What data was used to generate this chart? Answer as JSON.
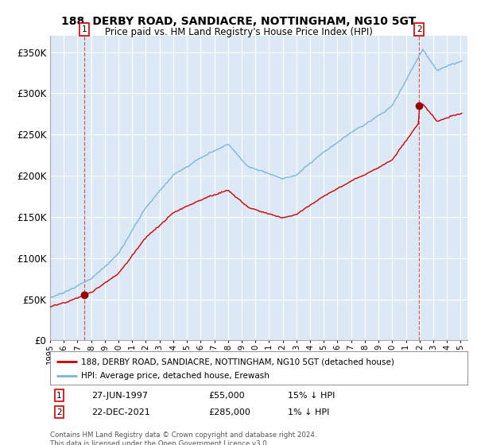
{
  "title_line1": "188, DERBY ROAD, SANDIACRE, NOTTINGHAM, NG10 5GT",
  "title_line2": "Price paid vs. HM Land Registry's House Price Index (HPI)",
  "ylabel_ticks": [
    "£0",
    "£50K",
    "£100K",
    "£150K",
    "£200K",
    "£250K",
    "£300K",
    "£350K"
  ],
  "ytick_values": [
    0,
    50000,
    100000,
    150000,
    200000,
    250000,
    300000,
    350000
  ],
  "ylim": [
    0,
    370000
  ],
  "sale1_price": 55000,
  "sale1_year": 1997.49,
  "sale2_price": 285000,
  "sale2_year": 2021.97,
  "legend_line1": "188, DERBY ROAD, SANDIACRE, NOTTINGHAM, NG10 5GT (detached house)",
  "legend_line2": "HPI: Average price, detached house, Erewash",
  "footer": "Contains HM Land Registry data © Crown copyright and database right 2024.\nThis data is licensed under the Open Government Licence v3.0.",
  "hpi_color": "#7ab8d9",
  "price_color": "#cc0000",
  "bg_color": "#dce8f5",
  "grid_color": "#ffffff",
  "sale_marker_color": "#990000"
}
